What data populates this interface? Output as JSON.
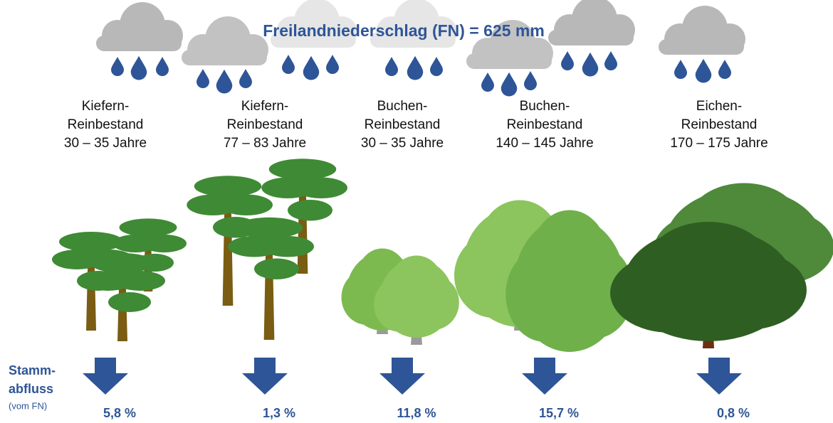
{
  "title": "Freilandniederschlag (FN) = 625 mm",
  "row_label": {
    "lines": [
      "Stamm-",
      "abfluss"
    ],
    "note": "(vom FN)"
  },
  "stands": [
    {
      "lines": [
        "Kiefern-",
        "Reinbestand",
        "30 – 35 Jahre"
      ],
      "stammabfluss": "5,8 %"
    },
    {
      "lines": [
        "Kiefern-",
        "Reinbestand",
        "77 – 83 Jahre"
      ],
      "stammabfluss": "1,3 %"
    },
    {
      "lines": [
        "Buchen-",
        "Reinbestand",
        "30 – 35 Jahre"
      ],
      "stammabfluss": "11,8 %"
    },
    {
      "lines": [
        "Buchen-",
        "Reinbestand",
        "140 – 145 Jahre"
      ],
      "stammabfluss": "15,7 %"
    },
    {
      "lines": [
        "Eichen-",
        "Reinbestand",
        "170 – 175 Jahre"
      ],
      "stammabfluss": "0,8 %"
    }
  ]
}
